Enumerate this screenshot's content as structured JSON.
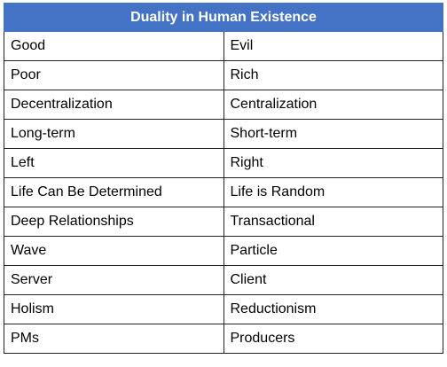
{
  "table": {
    "title": "Duality in Human Existence",
    "rows": [
      [
        "Good",
        "Evil"
      ],
      [
        "Poor",
        "Rich"
      ],
      [
        "Decentralization",
        "Centralization"
      ],
      [
        "Long-term",
        "Short-term"
      ],
      [
        "Left",
        "Right"
      ],
      [
        "Life Can Be Determined",
        "Life is Random"
      ],
      [
        "Deep Relationships",
        "Transactional"
      ],
      [
        "Wave",
        "Particle"
      ],
      [
        "Server",
        "Client"
      ],
      [
        "Holism",
        "Reductionism"
      ],
      [
        "PMs",
        "Producers"
      ]
    ]
  }
}
